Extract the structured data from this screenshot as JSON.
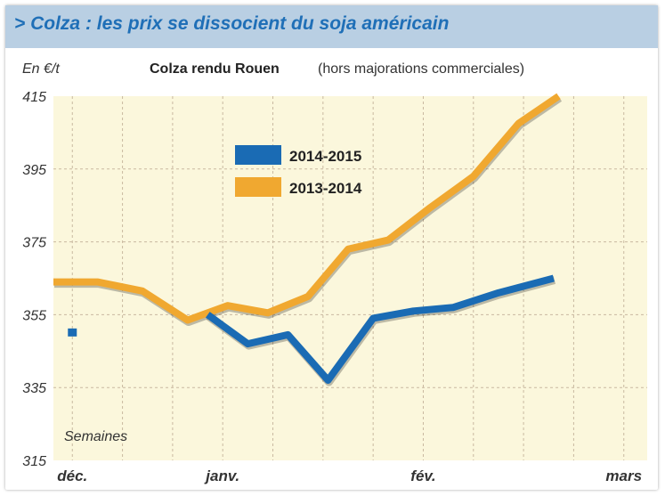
{
  "header": {
    "title": "> Colza : les prix se dissocient du soja américain"
  },
  "chart_data": {
    "type": "line",
    "title": "Colza rendu Rouen",
    "subtitle": "(hors majorations commerciales)",
    "ylabel": "En €/t",
    "xlabel": "Semaines",
    "ylim": [
      315,
      415
    ],
    "yticks": [
      315,
      335,
      355,
      375,
      395,
      415
    ],
    "x_tick_labels": [
      {
        "label": "déc.",
        "x": 0
      },
      {
        "label": "janv.",
        "x": 3
      },
      {
        "label": "fév.",
        "x": 7
      },
      {
        "label": "mars",
        "x": 11
      }
    ],
    "xlim": [
      -0.2,
      11.2
    ],
    "grid": true,
    "legend_placement": "top-left",
    "series": [
      {
        "name": "2014-2015",
        "color": "#1a6bb4",
        "x": [
          2.7,
          3.5,
          4.3,
          5.1,
          6.0,
          6.8,
          7.6,
          8.5,
          9.6
        ],
        "values": [
          355,
          347,
          349.5,
          337,
          354,
          356,
          357,
          361,
          365
        ]
      },
      {
        "name": "2013-2014",
        "color": "#f0a830",
        "x": [
          -0.4,
          0.5,
          1.4,
          2.3,
          3.1,
          3.9,
          4.7,
          5.5,
          6.3,
          7.1,
          8.0,
          8.9,
          9.7
        ],
        "values": [
          364,
          364,
          361.5,
          353.5,
          357.5,
          355.5,
          360,
          373,
          375.5,
          384,
          393,
          407.5,
          416
        ]
      }
    ],
    "annotations": [
      {
        "label": "point",
        "x": 0,
        "y": 350,
        "color": "#1a6bb4"
      }
    ]
  }
}
